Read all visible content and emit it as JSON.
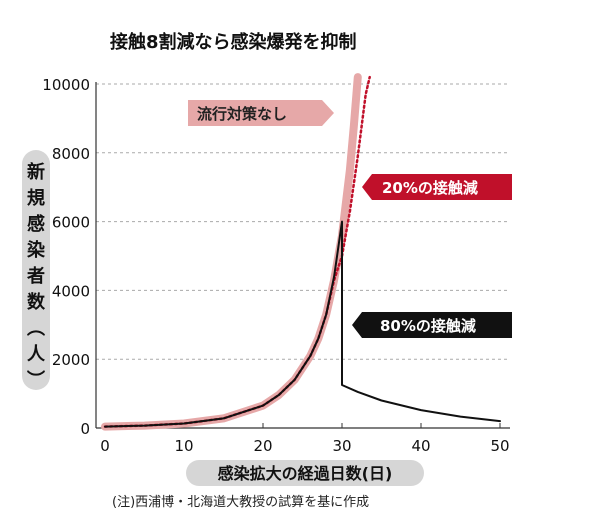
{
  "chart_data": {
    "type": "line",
    "title": "接触8割減なら感染爆発を抑制",
    "xlabel": "感染拡大の経過日数(日)",
    "ylabel": "新規感染者数(人)",
    "note": "(注)西浦博・北海道大教授の試算を基に作成",
    "xlim": [
      0,
      50
    ],
    "ylim": [
      0,
      10000
    ],
    "x_ticks": [
      "0",
      "10",
      "20",
      "30",
      "40",
      "50"
    ],
    "y_ticks": [
      "0",
      "2000",
      "4000",
      "6000",
      "8000",
      "10000"
    ],
    "grid": "horizontal-dashed",
    "series": [
      {
        "name": "流行対策なし",
        "color": "#e6a8a8",
        "style": "thick-solid",
        "points": [
          [
            0,
            40
          ],
          [
            5,
            70
          ],
          [
            10,
            130
          ],
          [
            15,
            280
          ],
          [
            20,
            650
          ],
          [
            22,
            960
          ],
          [
            24,
            1400
          ],
          [
            26,
            2100
          ],
          [
            27,
            2600
          ],
          [
            28,
            3300
          ],
          [
            29,
            4300
          ],
          [
            30,
            5600
          ],
          [
            31,
            7500
          ],
          [
            31.5,
            8800
          ],
          [
            32,
            10200
          ]
        ]
      },
      {
        "name": "20%の接触減",
        "color": "#c0102a",
        "style": "dotted",
        "points": [
          [
            0,
            40
          ],
          [
            5,
            70
          ],
          [
            10,
            130
          ],
          [
            15,
            280
          ],
          [
            20,
            650
          ],
          [
            22,
            960
          ],
          [
            24,
            1400
          ],
          [
            26,
            2100
          ],
          [
            27,
            2600
          ],
          [
            28,
            3300
          ],
          [
            29,
            4300
          ],
          [
            30,
            5000
          ],
          [
            31,
            6300
          ],
          [
            32,
            7900
          ],
          [
            33,
            9700
          ],
          [
            33.5,
            10200
          ]
        ]
      },
      {
        "name": "80%の接触減",
        "color": "#111111",
        "style": "solid",
        "points": [
          [
            0,
            40
          ],
          [
            5,
            70
          ],
          [
            10,
            130
          ],
          [
            15,
            280
          ],
          [
            20,
            650
          ],
          [
            22,
            960
          ],
          [
            24,
            1400
          ],
          [
            26,
            2100
          ],
          [
            27,
            2600
          ],
          [
            28,
            3300
          ],
          [
            29,
            4400
          ],
          [
            30,
            6000
          ],
          [
            30,
            1250
          ],
          [
            32,
            1050
          ],
          [
            35,
            800
          ],
          [
            40,
            520
          ],
          [
            45,
            330
          ],
          [
            50,
            200
          ]
        ]
      }
    ]
  }
}
